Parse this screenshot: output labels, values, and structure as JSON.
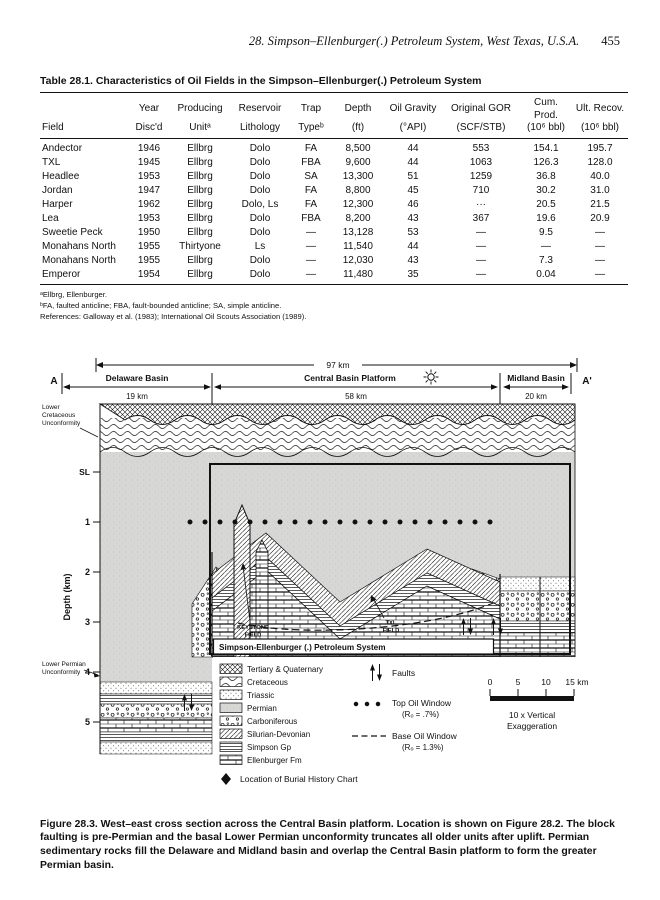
{
  "header": {
    "title": "28. Simpson–Ellenburger(.) Petroleum System, West Texas, U.S.A.",
    "page_number": "455"
  },
  "table": {
    "title": "Table 28.1. Characteristics of Oil Fields in the Simpson–Ellenburger(.) Petroleum System",
    "columns": [
      {
        "l1": "",
        "l2": "Field"
      },
      {
        "l1": "Year",
        "l2": "Disc'd"
      },
      {
        "l1": "Producing",
        "l2": "Unitᵃ"
      },
      {
        "l1": "Reservoir",
        "l2": "Lithology"
      },
      {
        "l1": "Trap",
        "l2": "Typeᵇ"
      },
      {
        "l1": "Depth",
        "l2": "(ft)"
      },
      {
        "l1": "Oil Gravity",
        "l2": "(°API)"
      },
      {
        "l1": "Original GOR",
        "l2": "(SCF/STB)"
      },
      {
        "l1": "Cum. Prod.",
        "l2": "(10⁶ bbl)"
      },
      {
        "l1": "Ult. Recov.",
        "l2": "(10⁶ bbl)"
      }
    ],
    "rows": [
      [
        "Andector",
        "1946",
        "Ellbrg",
        "Dolo",
        "FA",
        "8,500",
        "44",
        "553",
        "154.1",
        "195.7"
      ],
      [
        "TXL",
        "1945",
        "Ellbrg",
        "Dolo",
        "FBA",
        "9,600",
        "44",
        "1063",
        "126.3",
        "128.0"
      ],
      [
        "Headlee",
        "1953",
        "Ellbrg",
        "Dolo",
        "SA",
        "13,300",
        "51",
        "1259",
        "36.8",
        "40.0"
      ],
      [
        "Jordan",
        "1947",
        "Ellbrg",
        "Dolo",
        "FA",
        "8,800",
        "45",
        "710",
        "30.2",
        "31.0"
      ],
      [
        "Harper",
        "1962",
        "Ellbrg",
        "Dolo, Ls",
        "FA",
        "12,300",
        "46",
        "···",
        "20.5",
        "21.5"
      ],
      [
        "Lea",
        "1953",
        "Ellbrg",
        "Dolo",
        "FBA",
        "8,200",
        "43",
        "367",
        "19.6",
        "20.9"
      ],
      [
        "Sweetie Peck",
        "1950",
        "Ellbrg",
        "Dolo",
        "—",
        "13,128",
        "53",
        "—",
        "9.5",
        "—"
      ],
      [
        "Monahans North",
        "1955",
        "Thirtyone",
        "Ls",
        "—",
        "11,540",
        "44",
        "—",
        "—",
        "—"
      ],
      [
        "Monahans North",
        "1955",
        "Ellbrg",
        "Dolo",
        "—",
        "12,030",
        "43",
        "—",
        "7.3",
        "—"
      ],
      [
        "Emperor",
        "1954",
        "Ellbrg",
        "Dolo",
        "—",
        "11,480",
        "35",
        "—",
        "0.04",
        "—"
      ]
    ],
    "footnotes": [
      "ᵃEllbrg, Ellenburger.",
      "ᵇFA, faulted anticline; FBA, fault-bounded anticline; SA, simple anticline.",
      "References: Galloway et al. (1983); International Oil Scouts Association (1989)."
    ]
  },
  "figure": {
    "top_scale": "97 km",
    "endpoints": {
      "left": "A",
      "right": "A'"
    },
    "basins": [
      {
        "name": "Delaware Basin",
        "width": "19 km"
      },
      {
        "name": "Central Basin Platform",
        "width": "58 km"
      },
      {
        "name": "Midland Basin",
        "width": "20 km"
      }
    ],
    "axis": {
      "sea_level": "SL",
      "depth_label": "Depth (km)",
      "ticks": [
        "1",
        "2",
        "3",
        "4",
        "5"
      ]
    },
    "margin_labels": {
      "lower_cretaceous": [
        "Lower",
        "Cretaceous",
        "Unconformity"
      ],
      "lower_permian": [
        "Lower Permian",
        "Unconformity"
      ]
    },
    "fields": {
      "keystone": [
        "KEYSTONE",
        "FIELD"
      ],
      "txl": [
        "TXL",
        "FIELD"
      ]
    },
    "system_label": "Simpson-Ellenburger (.) Petroleum System",
    "legend": {
      "units": [
        {
          "label": "Tertiary & Quaternary"
        },
        {
          "label": "Cretaceous"
        },
        {
          "label": "Triassic"
        },
        {
          "label": "Permian"
        },
        {
          "label": "Carboniferous"
        },
        {
          "label": "Silurian-Devonian"
        },
        {
          "label": "Simpson Gp"
        },
        {
          "label": "Ellenburger Fm"
        }
      ],
      "faults": "Faults",
      "top_oil_window": [
        "Top Oil Window",
        "(Rₒ = .7%)"
      ],
      "base_oil_window": [
        "Base Oil Window",
        "(Rₒ = 1.3%)"
      ],
      "burial": "Location of Burial History Chart",
      "scale_ticks": [
        "0",
        "5",
        "10",
        "15 km"
      ],
      "exaggeration": [
        "10 x Vertical",
        "Exaggeration"
      ]
    }
  },
  "caption": "Figure 28.3. West–east cross section across the Central Basin platform. Location is shown on Figure 28.2. The block faulting is pre-Permian and the basal Lower Permian unconformity truncates all older units after uplift. Permian sedimentary rocks fill the Delaware and Midland basin and overlap the Central Basin platform to form the greater Permian basin."
}
